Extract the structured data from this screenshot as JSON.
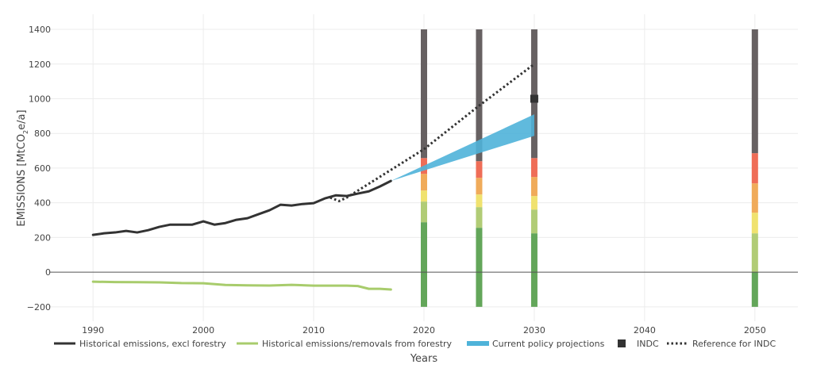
{
  "chart_data": {
    "type": "line",
    "title": "",
    "xlabel": "Years",
    "ylabel_main": "EMISSIONS [MtCO",
    "ylabel_sub": "2",
    "ylabel_end": "e/a]",
    "xlim": [
      1986.1,
      2053.9
    ],
    "ylim": [
      -283,
      1487
    ],
    "grid": true,
    "x_ticks": [
      1990,
      2000,
      2010,
      2020,
      2030,
      2040,
      2050
    ],
    "x_tick_labels": [
      "1990",
      "2000",
      "2010",
      "2020",
      "2030",
      "2040",
      "2050"
    ],
    "y_ticks": [
      -200,
      0,
      200,
      400,
      600,
      800,
      1000,
      1200,
      1400
    ],
    "y_tick_labels": [
      "−200",
      "0",
      "200",
      "400",
      "600",
      "800",
      "1000",
      "1200",
      "1400"
    ],
    "legend_position": "bottom",
    "series": [
      {
        "name": "Historical emissions, excl forestry",
        "kind": "line",
        "color": "#333333",
        "x": [
          1990,
          1991,
          1992,
          1993,
          1994,
          1995,
          1996,
          1997,
          1998,
          1999,
          2000,
          2001,
          2002,
          2003,
          2004,
          2005,
          2006,
          2007,
          2008,
          2009,
          2010,
          2011,
          2012,
          2013,
          2014,
          2015,
          2016,
          2017
        ],
        "y": [
          215,
          224,
          229,
          238,
          229,
          242,
          261,
          274,
          274,
          274,
          293,
          274,
          283,
          302,
          311,
          334,
          357,
          389,
          384,
          393,
          398,
          425,
          443,
          439,
          453,
          466,
          494,
          526
        ]
      },
      {
        "name": "Historical emissions/removals from forestry",
        "kind": "line",
        "color": "#a8cc6c",
        "x": [
          1990,
          1992,
          1994,
          1996,
          1998,
          2000,
          2002,
          2004,
          2006,
          2008,
          2010,
          2012,
          2013,
          2014,
          2015,
          2016,
          2017
        ],
        "y": [
          -55,
          -57,
          -58,
          -59,
          -63,
          -64,
          -74,
          -76,
          -77,
          -73,
          -78,
          -78,
          -78,
          -80,
          -96,
          -96,
          -100
        ]
      },
      {
        "name": "Current policy projections",
        "kind": "band",
        "color": "#4fb3d9",
        "x": [
          2017,
          2030
        ],
        "upper": [
          526,
          910
        ],
        "lower": [
          526,
          786
        ]
      },
      {
        "name": "INDC",
        "kind": "marker",
        "color": "#333333",
        "x": [
          2030
        ],
        "y": [
          1000
        ]
      },
      {
        "name": "Reference for INDC",
        "kind": "dotted",
        "color": "#333333",
        "x": [
          2011.5,
          2012.3,
          2013,
          2020,
          2025,
          2030
        ],
        "y": [
          430,
          410,
          430,
          709,
          960,
          1200
        ]
      }
    ],
    "stacked_bars": {
      "categories": [
        2020,
        2025,
        2030,
        2050
      ],
      "bottom": -200,
      "top": 1400,
      "colors": [
        "#63a65a",
        "#b1cc76",
        "#f0e26f",
        "#f0ab5a",
        "#ef6d57",
        "#676162"
      ],
      "boundaries": [
        [
          288,
          407,
          471,
          567,
          658
        ],
        [
          256,
          375,
          448,
          544,
          640
        ],
        [
          224,
          361,
          439,
          549,
          658
        ],
        [
          0,
          224,
          343,
          512,
          686
        ]
      ]
    },
    "legend": [
      {
        "label": "Historical emissions, excl forestry",
        "symbol": "line",
        "color": "#333333"
      },
      {
        "label": "Historical emissions/removals from forestry",
        "symbol": "line",
        "color": "#a8cc6c"
      },
      {
        "label": "Current policy projections",
        "symbol": "band",
        "color": "#4fb3d9"
      },
      {
        "label": "INDC",
        "symbol": "square",
        "color": "#333333"
      },
      {
        "label": "Reference for INDC",
        "symbol": "dotted",
        "color": "#333333"
      }
    ]
  }
}
